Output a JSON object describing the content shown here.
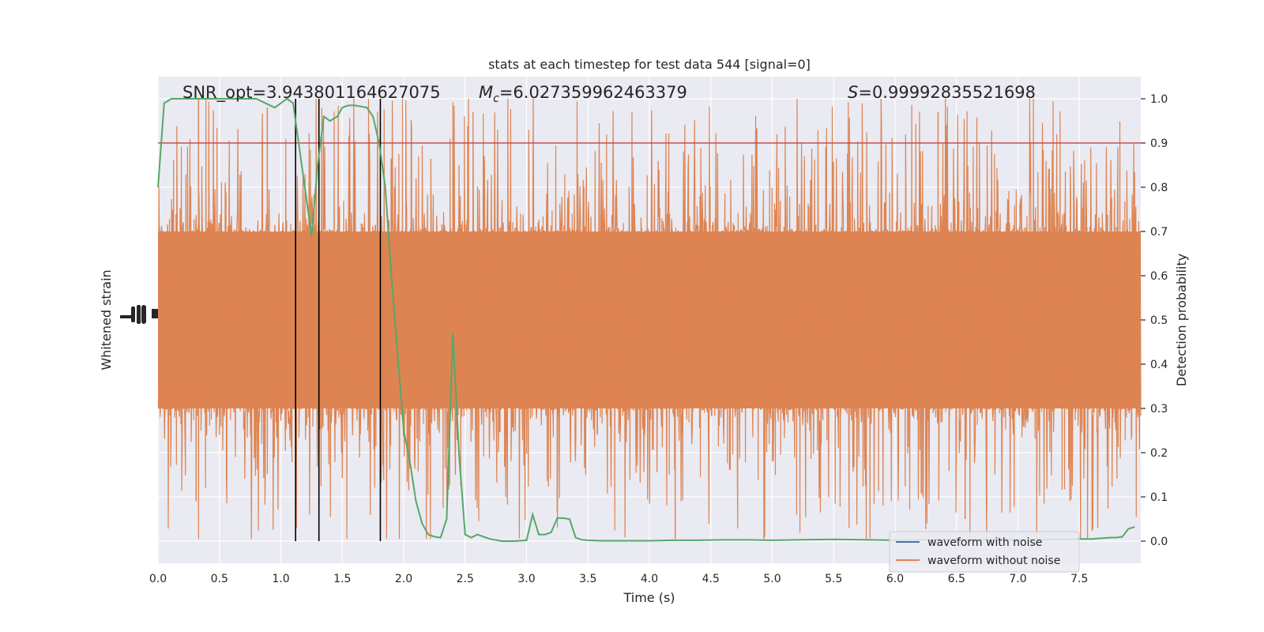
{
  "chart_data": {
    "type": "line",
    "title": "stats at each timestep for test data 544 [signal=0]",
    "xlabel": "Time (s)",
    "ylabel_left": "Whitened strain",
    "ylabel_right": "Detection probability",
    "xlim": [
      0,
      8
    ],
    "ylim_right": [
      -0.05,
      1.05
    ],
    "x_ticks": [
      "0.0",
      "0.5",
      "1.0",
      "1.5",
      "2.0",
      "2.5",
      "3.0",
      "3.5",
      "4.0",
      "4.5",
      "5.0",
      "5.5",
      "6.0",
      "6.5",
      "7.0",
      "7.5"
    ],
    "x_tick_values": [
      0,
      0.5,
      1,
      1.5,
      2,
      2.5,
      3,
      3.5,
      4,
      4.5,
      5,
      5.5,
      6,
      6.5,
      7,
      7.5
    ],
    "y_right_ticks": [
      "0.0",
      "0.1",
      "0.2",
      "0.3",
      "0.4",
      "0.5",
      "0.6",
      "0.7",
      "0.8",
      "0.9",
      "1.0"
    ],
    "y_right_tick_values": [
      0,
      0.1,
      0.2,
      0.3,
      0.4,
      0.5,
      0.6,
      0.7,
      0.8,
      0.9,
      1.0
    ],
    "annotations": {
      "snr_prefix": "SNR_opt=",
      "snr_value": "3.943801164627075",
      "mc_symbol": "M",
      "mc_subscript": "c",
      "mc_value": "=6.027359962463379",
      "s_symbol": "S",
      "s_value": "=0.99992835521698"
    },
    "threshold": 0.9,
    "vertical_lines_x": [
      1.12,
      1.31,
      1.81
    ],
    "series": [
      {
        "name": "waveform with noise",
        "color": "#4c72b0",
        "values": []
      },
      {
        "name": "waveform without noise",
        "color": "#dd8452",
        "band_center": 0.5,
        "band_typical": 0.2,
        "peak_max": 1.0
      },
      {
        "color": "#55a868",
        "x": [
          0,
          0.05,
          0.11,
          0.2,
          0.4,
          0.6,
          0.8,
          0.95,
          1.05,
          1.1,
          1.17,
          1.25,
          1.3,
          1.35,
          1.4,
          1.46,
          1.5,
          1.55,
          1.6,
          1.7,
          1.75,
          1.8,
          1.85,
          1.9,
          2.0,
          2.05,
          2.1,
          2.15,
          2.2,
          2.25,
          2.3,
          2.35,
          2.4,
          2.45,
          2.5,
          2.55,
          2.6,
          2.65,
          2.7,
          2.8,
          2.9,
          2.95,
          3.0,
          3.05,
          3.1,
          3.15,
          3.2,
          3.25,
          3.3,
          3.35,
          3.4,
          3.45,
          3.5,
          3.6,
          4.0,
          4.2,
          4.4,
          4.6,
          4.8,
          5.0,
          5.2,
          5.5,
          5.8,
          6.0,
          6.2,
          6.5,
          6.8,
          7.0,
          7.2,
          7.4,
          7.5,
          7.6,
          7.7,
          7.75,
          7.8,
          7.85,
          7.9,
          7.95
        ],
        "values": [
          0.8,
          0.99,
          1.0,
          1.0,
          1.0,
          1.0,
          1.0,
          0.98,
          1.0,
          0.99,
          0.85,
          0.69,
          0.85,
          0.96,
          0.95,
          0.96,
          0.98,
          0.985,
          0.985,
          0.98,
          0.96,
          0.9,
          0.8,
          0.6,
          0.25,
          0.18,
          0.09,
          0.04,
          0.015,
          0.01,
          0.008,
          0.05,
          0.47,
          0.2,
          0.015,
          0.008,
          0.015,
          0.01,
          0.005,
          0.0,
          0.0,
          0.001,
          0.002,
          0.06,
          0.015,
          0.015,
          0.02,
          0.052,
          0.052,
          0.05,
          0.008,
          0.003,
          0.002,
          0.001,
          0.001,
          0.002,
          0.002,
          0.003,
          0.003,
          0.002,
          0.003,
          0.004,
          0.003,
          0.002,
          0.003,
          0.004,
          0.003,
          0.003,
          0.004,
          0.004,
          0.005,
          0.005,
          0.007,
          0.008,
          0.008,
          0.01,
          0.028,
          0.032
        ]
      }
    ],
    "legend_placement": "lower-right",
    "grid": true
  }
}
